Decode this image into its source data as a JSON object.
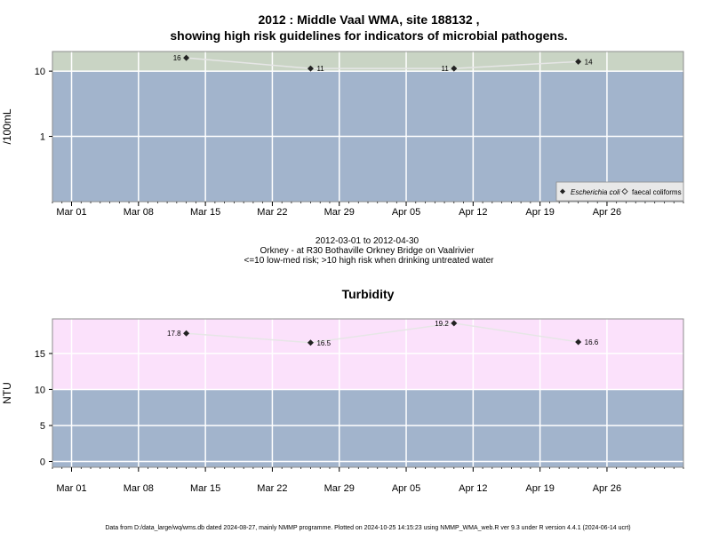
{
  "title_line1": "2012 : Middle Vaal WMA, site 188132 ,",
  "title_line2": "showing high risk guidelines for indicators of microbial pathogens.",
  "mid_line1": "2012-03-01 to 2012-04-30",
  "mid_line2": "Orkney - at R30 Bothaville Orkney Bridge on Vaalrivier",
  "mid_line3": "<=10 low-med risk; >10 high risk when drinking untreated water",
  "footer": "Data from D:/data_large/wq/wms.db dated 2024-08-27, mainly NMMP programme. Plotted on 2024-10-25 14:15:23 using NMMP_WMA_web.R ver 9.3 under R version 4.4.1 (2024-06-14 ucrt)",
  "colors": {
    "low_band": "#a2b4cc",
    "micro_high_band": "#c9d4c4",
    "turb_high_band": "#fbe1fb",
    "line": "#e6e6e6",
    "point": "#222222",
    "grid": "#ffffff"
  },
  "chart_data": [
    {
      "type": "line",
      "title": "",
      "ylabel": "/100mL",
      "yscale": "log",
      "ylim": [
        0.1,
        20
      ],
      "yticks": [
        {
          "v": 1,
          "label": "1"
        },
        {
          "v": 10,
          "label": "10"
        }
      ],
      "threshold": 10,
      "x_range": [
        "2012-02-28",
        "2012-05-04"
      ],
      "xticks": [
        {
          "date": "2012-03-01",
          "label": "Mar 01"
        },
        {
          "date": "2012-03-08",
          "label": "Mar 08"
        },
        {
          "date": "2012-03-15",
          "label": "Mar 15"
        },
        {
          "date": "2012-03-22",
          "label": "Mar 22"
        },
        {
          "date": "2012-03-29",
          "label": "Mar 29"
        },
        {
          "date": "2012-04-05",
          "label": "Apr 05"
        },
        {
          "date": "2012-04-12",
          "label": "Apr 12"
        },
        {
          "date": "2012-04-19",
          "label": "Apr 19"
        },
        {
          "date": "2012-04-26",
          "label": "Apr 26"
        }
      ],
      "series": [
        {
          "name": "Escherichia coli",
          "marker": "diamond-filled",
          "points": [
            {
              "x": "2012-03-13",
              "y": 16,
              "label": "16"
            },
            {
              "x": "2012-03-26",
              "y": 11,
              "label": "11"
            },
            {
              "x": "2012-04-10",
              "y": 11,
              "label": "11"
            },
            {
              "x": "2012-04-23",
              "y": 14,
              "label": "14"
            }
          ]
        },
        {
          "name": "faecal coliforms",
          "marker": "diamond-open",
          "points": []
        }
      ],
      "legend": "bottom-right"
    },
    {
      "type": "line",
      "title": "Turbidity",
      "ylabel": "NTU",
      "yscale": "linear",
      "ylim": [
        -0.8,
        19.8
      ],
      "yticks": [
        {
          "v": 0,
          "label": "0"
        },
        {
          "v": 5,
          "label": "5"
        },
        {
          "v": 10,
          "label": "10"
        },
        {
          "v": 15,
          "label": "15"
        }
      ],
      "threshold": 10,
      "x_range": [
        "2012-02-28",
        "2012-05-04"
      ],
      "xticks": [
        {
          "date": "2012-03-01",
          "label": "Mar 01"
        },
        {
          "date": "2012-03-08",
          "label": "Mar 08"
        },
        {
          "date": "2012-03-15",
          "label": "Mar 15"
        },
        {
          "date": "2012-03-22",
          "label": "Mar 22"
        },
        {
          "date": "2012-03-29",
          "label": "Mar 29"
        },
        {
          "date": "2012-04-05",
          "label": "Apr 05"
        },
        {
          "date": "2012-04-12",
          "label": "Apr 12"
        },
        {
          "date": "2012-04-19",
          "label": "Apr 19"
        },
        {
          "date": "2012-04-26",
          "label": "Apr 26"
        }
      ],
      "series": [
        {
          "name": "Turbidity",
          "marker": "diamond-filled",
          "points": [
            {
              "x": "2012-03-13",
              "y": 17.8,
              "label": "17.8"
            },
            {
              "x": "2012-03-26",
              "y": 16.5,
              "label": "16.5"
            },
            {
              "x": "2012-04-10",
              "y": 19.2,
              "label": "19.2"
            },
            {
              "x": "2012-04-23",
              "y": 16.6,
              "label": "16.6"
            }
          ]
        }
      ]
    }
  ]
}
